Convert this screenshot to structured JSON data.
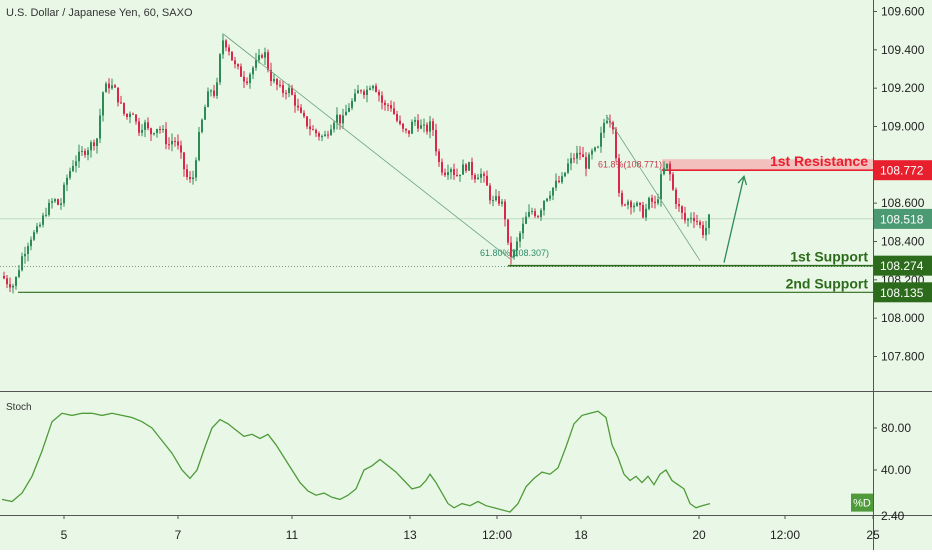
{
  "header": {
    "title": "U.S. Dollar / Japanese Yen, 60, SAXO"
  },
  "colors": {
    "background": "#e9f8e6",
    "up_candle": "#2e8b57",
    "down_candle": "#d9294b",
    "resistance": "#e8202e",
    "support": "#2d6b1c",
    "last_price": "#4c9a73",
    "stoch_line": "#4f9a3a"
  },
  "chart_data": [
    {
      "type": "candlestick",
      "title": "U.S. Dollar / Japanese Yen, 60, SAXO",
      "ylim": [
        107.62,
        109.66
      ],
      "y_ticks": [
        "109.600",
        "109.400",
        "109.200",
        "109.000",
        "108.800",
        "108.600",
        "108.400",
        "108.200",
        "108.000",
        "107.800"
      ],
      "x_ticks": [
        "5",
        "7",
        "11",
        "13",
        "12:00",
        "18",
        "20",
        "12:00",
        "25"
      ],
      "grid": false,
      "close_path": [
        [
          0,
          108.22
        ],
        [
          5,
          108.19
        ],
        [
          12,
          108.17
        ],
        [
          20,
          108.32
        ],
        [
          28,
          108.42
        ],
        [
          36,
          108.46
        ],
        [
          44,
          108.56
        ],
        [
          52,
          108.62
        ],
        [
          58,
          108.58
        ],
        [
          64,
          108.72
        ],
        [
          72,
          108.82
        ],
        [
          80,
          108.86
        ],
        [
          88,
          108.9
        ],
        [
          95,
          108.94
        ],
        [
          101,
          109.18
        ],
        [
          106,
          109.22
        ],
        [
          112,
          109.2
        ],
        [
          118,
          109.12
        ],
        [
          124,
          109.04
        ],
        [
          130,
          109.1
        ],
        [
          136,
          108.98
        ],
        [
          142,
          109.02
        ],
        [
          148,
          108.96
        ],
        [
          154,
          109.0
        ],
        [
          160,
          108.98
        ],
        [
          166,
          108.9
        ],
        [
          172,
          108.94
        ],
        [
          178,
          108.86
        ],
        [
          184,
          108.74
        ],
        [
          190,
          108.7
        ],
        [
          196,
          108.92
        ],
        [
          202,
          109.08
        ],
        [
          208,
          109.2
        ],
        [
          214,
          109.16
        ],
        [
          220,
          109.46
        ],
        [
          226,
          109.42
        ],
        [
          232,
          109.32
        ],
        [
          238,
          109.28
        ],
        [
          244,
          109.24
        ],
        [
          250,
          109.3
        ],
        [
          256,
          109.34
        ],
        [
          262,
          109.4
        ],
        [
          268,
          109.26
        ],
        [
          274,
          109.22
        ],
        [
          280,
          109.18
        ],
        [
          286,
          109.2
        ],
        [
          292,
          109.14
        ],
        [
          298,
          109.06
        ],
        [
          304,
          109.02
        ],
        [
          310,
          108.98
        ],
        [
          316,
          108.96
        ],
        [
          322,
          108.94
        ],
        [
          328,
          109.0
        ],
        [
          334,
          109.06
        ],
        [
          340,
          109.02
        ],
        [
          346,
          109.1
        ],
        [
          352,
          109.14
        ],
        [
          358,
          109.2
        ],
        [
          364,
          109.18
        ],
        [
          370,
          109.24
        ],
        [
          376,
          109.18
        ],
        [
          382,
          109.1
        ],
        [
          388,
          109.12
        ],
        [
          394,
          109.04
        ],
        [
          400,
          108.98
        ],
        [
          406,
          108.96
        ],
        [
          412,
          109.04
        ],
        [
          418,
          109.0
        ],
        [
          424,
          108.98
        ],
        [
          430,
          109.02
        ],
        [
          436,
          108.82
        ],
        [
          442,
          108.76
        ],
        [
          448,
          108.8
        ],
        [
          454,
          108.74
        ],
        [
          460,
          108.78
        ],
        [
          466,
          108.8
        ],
        [
          472,
          108.74
        ],
        [
          478,
          108.76
        ],
        [
          484,
          108.7
        ],
        [
          490,
          108.6
        ],
        [
          496,
          108.62
        ],
        [
          502,
          108.58
        ],
        [
          507,
          108.32
        ],
        [
          512,
          108.34
        ],
        [
          518,
          108.44
        ],
        [
          524,
          108.52
        ],
        [
          530,
          108.56
        ],
        [
          536,
          108.54
        ],
        [
          542,
          108.62
        ],
        [
          548,
          108.66
        ],
        [
          554,
          108.7
        ],
        [
          560,
          108.72
        ],
        [
          566,
          108.8
        ],
        [
          572,
          108.84
        ],
        [
          578,
          108.86
        ],
        [
          584,
          108.8
        ],
        [
          590,
          108.86
        ],
        [
          596,
          108.88
        ],
        [
          602,
          109.02
        ],
        [
          606,
          109.06
        ],
        [
          612,
          109.0
        ],
        [
          618,
          108.56
        ],
        [
          624,
          108.62
        ],
        [
          630,
          108.6
        ],
        [
          636,
          108.58
        ],
        [
          642,
          108.54
        ],
        [
          648,
          108.62
        ],
        [
          654,
          108.58
        ],
        [
          660,
          108.76
        ],
        [
          666,
          108.8
        ],
        [
          672,
          108.64
        ],
        [
          678,
          108.56
        ],
        [
          684,
          108.5
        ],
        [
          690,
          108.54
        ],
        [
          696,
          108.5
        ],
        [
          702,
          108.44
        ],
        [
          707,
          108.52
        ]
      ],
      "trendlines": [
        {
          "from": [
            222,
            109.48
          ],
          "to": [
            508,
            108.31
          ]
        },
        {
          "from": [
            604,
            109.06
          ],
          "to": [
            698,
            108.3
          ]
        }
      ],
      "fib_labels": [
        {
          "text": "61.80%(108.307)",
          "x": 508,
          "price": 108.31
        },
        {
          "text": "61.8%(108.771)",
          "x": 608,
          "price": 108.77
        }
      ],
      "levels": [
        {
          "name": "1st Resistance",
          "price": 108.772,
          "label": "108.772",
          "kind": "resistance"
        },
        {
          "name": "1st Support",
          "price": 108.274,
          "label": "108.274",
          "kind": "support"
        },
        {
          "name": "2nd Support",
          "price": 108.135,
          "label": "108.135",
          "kind": "support"
        }
      ],
      "last_price": {
        "price": 108.518,
        "label": "108.518"
      },
      "annotations": [
        "1st Resistance",
        "1st Support",
        "2nd Support"
      ],
      "projection_arrow": {
        "from": [
          722,
          108.29
        ],
        "to": [
          742,
          108.74
        ]
      }
    },
    {
      "type": "line",
      "title": "Stoch",
      "series": [
        {
          "name": "%D",
          "points": [
            [
              0,
              12
            ],
            [
              10,
              10
            ],
            [
              20,
              18
            ],
            [
              30,
              34
            ],
            [
              40,
              58
            ],
            [
              50,
              86
            ],
            [
              60,
              94
            ],
            [
              70,
              92
            ],
            [
              80,
              94
            ],
            [
              90,
              94
            ],
            [
              100,
              92
            ],
            [
              110,
              94
            ],
            [
              120,
              92
            ],
            [
              130,
              90
            ],
            [
              140,
              86
            ],
            [
              150,
              80
            ],
            [
              160,
              68
            ],
            [
              170,
              56
            ],
            [
              180,
              40
            ],
            [
              188,
              32
            ],
            [
              195,
              40
            ],
            [
              203,
              62
            ],
            [
              210,
              80
            ],
            [
              218,
              88
            ],
            [
              226,
              84
            ],
            [
              234,
              78
            ],
            [
              242,
              72
            ],
            [
              250,
              74
            ],
            [
              258,
              70
            ],
            [
              266,
              74
            ],
            [
              274,
              64
            ],
            [
              282,
              52
            ],
            [
              290,
              40
            ],
            [
              298,
              28
            ],
            [
              306,
              20
            ],
            [
              314,
              16
            ],
            [
              322,
              18
            ],
            [
              330,
              14
            ],
            [
              338,
              12
            ],
            [
              346,
              16
            ],
            [
              354,
              22
            ],
            [
              362,
              40
            ],
            [
              370,
              44
            ],
            [
              378,
              50
            ],
            [
              386,
              44
            ],
            [
              394,
              38
            ],
            [
              402,
              30
            ],
            [
              410,
              22
            ],
            [
              418,
              24
            ],
            [
              424,
              30
            ],
            [
              428,
              36
            ],
            [
              434,
              28
            ],
            [
              440,
              18
            ],
            [
              446,
              8
            ],
            [
              452,
              4
            ],
            [
              460,
              8
            ],
            [
              468,
              6
            ],
            [
              476,
              10
            ],
            [
              484,
              6
            ],
            [
              492,
              4
            ],
            [
              500,
              2
            ],
            [
              508,
              0
            ],
            [
              516,
              8
            ],
            [
              524,
              24
            ],
            [
              532,
              32
            ],
            [
              540,
              38
            ],
            [
              548,
              36
            ],
            [
              556,
              42
            ],
            [
              564,
              62
            ],
            [
              572,
              84
            ],
            [
              580,
              92
            ],
            [
              588,
              94
            ],
            [
              596,
              96
            ],
            [
              604,
              90
            ],
            [
              610,
              64
            ],
            [
              616,
              52
            ],
            [
              622,
              36
            ],
            [
              628,
              30
            ],
            [
              634,
              34
            ],
            [
              640,
              28
            ],
            [
              646,
              34
            ],
            [
              652,
              26
            ],
            [
              658,
              36
            ],
            [
              664,
              40
            ],
            [
              670,
              30
            ],
            [
              676,
              26
            ],
            [
              682,
              22
            ],
            [
              688,
              8
            ],
            [
              694,
              4
            ],
            [
              700,
              6
            ],
            [
              708,
              8
            ]
          ]
        }
      ],
      "ylim": [
        0,
        100
      ],
      "y_ticks": [
        "80.00",
        "40.00"
      ],
      "value_label": "%D",
      "partial_tick": "2.40"
    }
  ]
}
